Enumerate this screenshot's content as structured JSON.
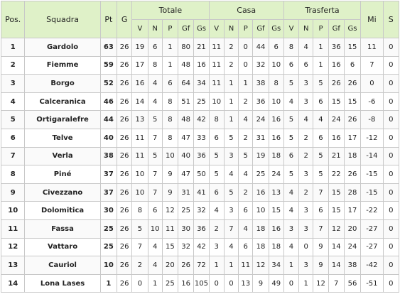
{
  "headers": {
    "pos": "Pos.",
    "team": "Squadra",
    "pt": "Pt",
    "g": "G",
    "groups": [
      "Totale",
      "Casa",
      "Trasferta"
    ],
    "sub": [
      "V",
      "N",
      "P",
      "Gf",
      "Gs"
    ],
    "mi": "Mi",
    "s": "S"
  },
  "rows": [
    {
      "pos": "1",
      "team": "Gardolo",
      "pt": "63",
      "g": "26",
      "tot": [
        "19",
        "6",
        "1",
        "80",
        "21"
      ],
      "casa": [
        "11",
        "2",
        "0",
        "44",
        "6"
      ],
      "tras": [
        "8",
        "4",
        "1",
        "36",
        "15"
      ],
      "mi": "11",
      "s": "0"
    },
    {
      "pos": "2",
      "team": "Fiemme",
      "pt": "59",
      "g": "26",
      "tot": [
        "17",
        "8",
        "1",
        "48",
        "16"
      ],
      "casa": [
        "11",
        "2",
        "0",
        "32",
        "10"
      ],
      "tras": [
        "6",
        "6",
        "1",
        "16",
        "6"
      ],
      "mi": "7",
      "s": "0"
    },
    {
      "pos": "3",
      "team": "Borgo",
      "pt": "52",
      "g": "26",
      "tot": [
        "16",
        "4",
        "6",
        "64",
        "34"
      ],
      "casa": [
        "11",
        "1",
        "1",
        "38",
        "8"
      ],
      "tras": [
        "5",
        "3",
        "5",
        "26",
        "26"
      ],
      "mi": "0",
      "s": "0"
    },
    {
      "pos": "4",
      "team": "Calceranica",
      "pt": "46",
      "g": "26",
      "tot": [
        "14",
        "4",
        "8",
        "51",
        "25"
      ],
      "casa": [
        "10",
        "1",
        "2",
        "36",
        "10"
      ],
      "tras": [
        "4",
        "3",
        "6",
        "15",
        "15"
      ],
      "mi": "-6",
      "s": "0"
    },
    {
      "pos": "5",
      "team": "Ortigaralefre",
      "pt": "44",
      "g": "26",
      "tot": [
        "13",
        "5",
        "8",
        "48",
        "42"
      ],
      "casa": [
        "8",
        "1",
        "4",
        "24",
        "16"
      ],
      "tras": [
        "5",
        "4",
        "4",
        "24",
        "26"
      ],
      "mi": "-8",
      "s": "0"
    },
    {
      "pos": "6",
      "team": "Telve",
      "pt": "40",
      "g": "26",
      "tot": [
        "11",
        "7",
        "8",
        "47",
        "33"
      ],
      "casa": [
        "6",
        "5",
        "2",
        "31",
        "16"
      ],
      "tras": [
        "5",
        "2",
        "6",
        "16",
        "17"
      ],
      "mi": "-12",
      "s": "0"
    },
    {
      "pos": "7",
      "team": "Verla",
      "pt": "38",
      "g": "26",
      "tot": [
        "11",
        "5",
        "10",
        "40",
        "36"
      ],
      "casa": [
        "5",
        "3",
        "5",
        "19",
        "18"
      ],
      "tras": [
        "6",
        "2",
        "5",
        "21",
        "18"
      ],
      "mi": "-14",
      "s": "0"
    },
    {
      "pos": "8",
      "team": "Piné",
      "pt": "37",
      "g": "26",
      "tot": [
        "10",
        "7",
        "9",
        "47",
        "50"
      ],
      "casa": [
        "5",
        "4",
        "4",
        "25",
        "24"
      ],
      "tras": [
        "5",
        "3",
        "5",
        "22",
        "26"
      ],
      "mi": "-15",
      "s": "0"
    },
    {
      "pos": "9",
      "team": "Civezzano",
      "pt": "37",
      "g": "26",
      "tot": [
        "10",
        "7",
        "9",
        "31",
        "41"
      ],
      "casa": [
        "6",
        "5",
        "2",
        "16",
        "13"
      ],
      "tras": [
        "4",
        "2",
        "7",
        "15",
        "28"
      ],
      "mi": "-15",
      "s": "0"
    },
    {
      "pos": "10",
      "team": "Dolomitica",
      "pt": "30",
      "g": "26",
      "tot": [
        "8",
        "6",
        "12",
        "25",
        "32"
      ],
      "casa": [
        "4",
        "3",
        "6",
        "10",
        "15"
      ],
      "tras": [
        "4",
        "3",
        "6",
        "15",
        "17"
      ],
      "mi": "-22",
      "s": "0"
    },
    {
      "pos": "11",
      "team": "Fassa",
      "pt": "25",
      "g": "26",
      "tot": [
        "5",
        "10",
        "11",
        "30",
        "36"
      ],
      "casa": [
        "2",
        "7",
        "4",
        "18",
        "16"
      ],
      "tras": [
        "3",
        "3",
        "7",
        "12",
        "20"
      ],
      "mi": "-27",
      "s": "0"
    },
    {
      "pos": "12",
      "team": "Vattaro",
      "pt": "25",
      "g": "26",
      "tot": [
        "7",
        "4",
        "15",
        "32",
        "42"
      ],
      "casa": [
        "3",
        "4",
        "6",
        "18",
        "18"
      ],
      "tras": [
        "4",
        "0",
        "9",
        "14",
        "24"
      ],
      "mi": "-27",
      "s": "0"
    },
    {
      "pos": "13",
      "team": "Cauriol",
      "pt": "10",
      "g": "26",
      "tot": [
        "2",
        "4",
        "20",
        "26",
        "72"
      ],
      "casa": [
        "1",
        "1",
        "11",
        "12",
        "34"
      ],
      "tras": [
        "1",
        "3",
        "9",
        "14",
        "38"
      ],
      "mi": "-42",
      "s": "0"
    },
    {
      "pos": "14",
      "team": "Lona Lases",
      "pt": "1",
      "g": "26",
      "tot": [
        "0",
        "1",
        "25",
        "16",
        "105"
      ],
      "casa": [
        "0",
        "0",
        "13",
        "9",
        "49"
      ],
      "tras": [
        "0",
        "1",
        "12",
        "7",
        "56"
      ],
      "mi": "-51",
      "s": "0"
    }
  ]
}
